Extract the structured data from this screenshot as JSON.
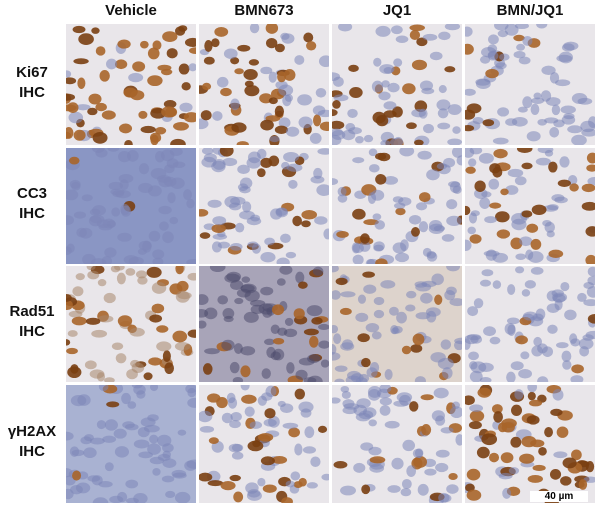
{
  "columns": [
    "Vehicle",
    "BMN673",
    "JQ1",
    "BMN/JQ1"
  ],
  "rows": [
    {
      "marker": "Ki67",
      "method": "IHC"
    },
    {
      "marker": "CC3",
      "method": "IHC"
    },
    {
      "marker": "Rad51",
      "method": "IHC"
    },
    {
      "marker": "γH2AX",
      "method": "IHC"
    }
  ],
  "scale_bar": "40 µm",
  "stain_colors": {
    "dab_brown": "#7a3f12",
    "hematoxylin_blue": "#7d86b8",
    "background": "#e9e6ea"
  },
  "panel_stain_levels": [
    [
      0.85,
      0.55,
      0.35,
      0.1
    ],
    [
      0.02,
      0.2,
      0.25,
      0.4
    ],
    [
      0.5,
      0.2,
      0.15,
      0.08
    ],
    [
      0.02,
      0.35,
      0.3,
      0.7
    ]
  ]
}
